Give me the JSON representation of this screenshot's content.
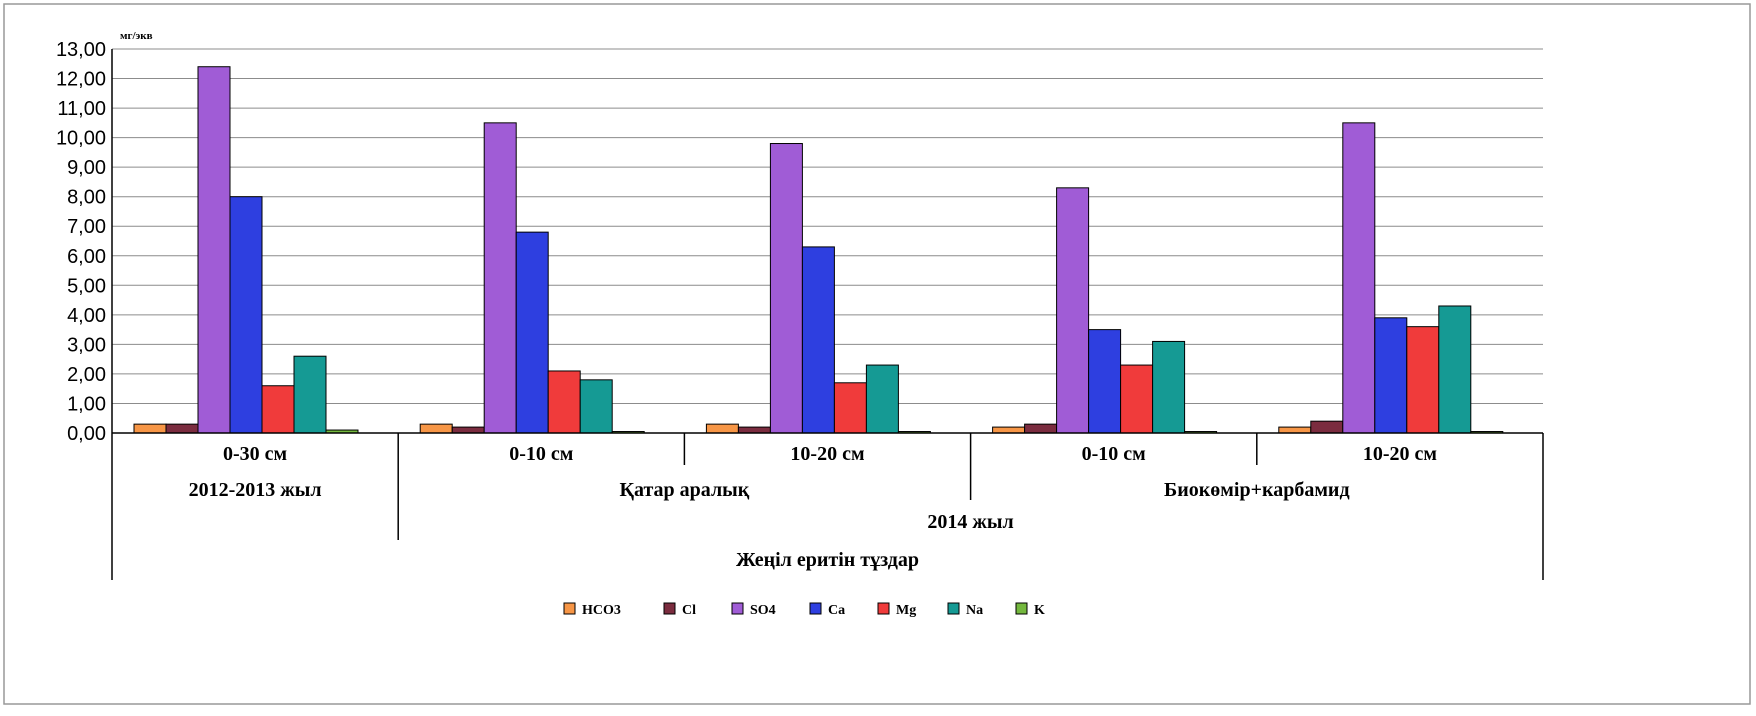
{
  "chart_data": {
    "type": "bar",
    "ylabel": "мг/экв",
    "xlabel": "Жеңіл еритін тұздар",
    "ylim": [
      0,
      13
    ],
    "yticks": [
      "0,00",
      "1,00",
      "2,00",
      "3,00",
      "4,00",
      "5,00",
      "6,00",
      "7,00",
      "8,00",
      "9,00",
      "10,00",
      "11,00",
      "12,00",
      "13,00"
    ],
    "grid": true,
    "legend_position": "bottom",
    "categories": [
      "0-30 см",
      "0-10 см",
      "10-20 см",
      "0-10 см",
      "10-20 см"
    ],
    "groups": [
      {
        "label": "Қатар аралық",
        "span": [
          1,
          2
        ]
      },
      {
        "label": "Биокөмір+карбамид",
        "span": [
          3,
          4
        ]
      }
    ],
    "periods": [
      {
        "label": "2012-2013 жыл",
        "span": [
          0,
          0
        ]
      },
      {
        "label": "2014 жыл",
        "span": [
          1,
          4
        ]
      }
    ],
    "series": [
      {
        "name": "HCO3",
        "color": "#F79646",
        "values": [
          0.3,
          0.3,
          0.3,
          0.2,
          0.2
        ]
      },
      {
        "name": "Cl",
        "color": "#7B2C3F",
        "values": [
          0.3,
          0.2,
          0.2,
          0.3,
          0.4
        ]
      },
      {
        "name": "SO4",
        "color": "#A05CD6",
        "values": [
          12.4,
          10.5,
          9.8,
          8.3,
          10.5
        ]
      },
      {
        "name": "Ca",
        "color": "#2E3FE0",
        "values": [
          8.0,
          6.8,
          6.3,
          3.5,
          3.9
        ]
      },
      {
        "name": "Mg",
        "color": "#F03B3B",
        "values": [
          1.6,
          2.1,
          1.7,
          2.3,
          3.6
        ]
      },
      {
        "name": "Na",
        "color": "#159A94",
        "values": [
          2.6,
          1.8,
          2.3,
          3.1,
          4.3
        ]
      },
      {
        "name": "K",
        "color": "#74B83E",
        "values": [
          0.1,
          0.05,
          0.05,
          0.05,
          0.05
        ]
      }
    ]
  }
}
